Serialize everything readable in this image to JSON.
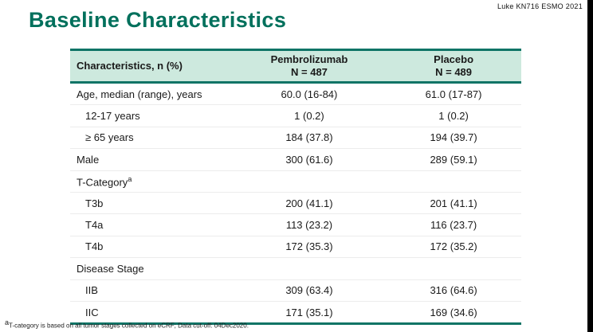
{
  "slide": {
    "attribution": "Luke KN716 ESMO 2021",
    "title": "Baseline Characteristics",
    "footnote_sup": "a",
    "footnote": "T-category is based on all tumor stages collected on eCRF; Data cut-off: 04Dec2020."
  },
  "colors": {
    "accent_teal": "#00705C",
    "table_border_teal": "#0E7466",
    "header_bg_mint": "#CDE9DE"
  },
  "table": {
    "headers": {
      "characteristics": "Characteristics, n (%)",
      "pembrolizumab_line1": "Pembrolizumab",
      "pembrolizumab_line2": "N = 487",
      "placebo_line1": "Placebo",
      "placebo_line2": "N = 489"
    },
    "rows": [
      {
        "label": "Age, median (range), years",
        "pembrolizumab": "60.0 (16-84)",
        "placebo": "61.0 (17-87)"
      },
      {
        "label": "12-17 years",
        "pembrolizumab": "1 (0.2)",
        "placebo": "1 (0.2)"
      },
      {
        "label": "≥ 65 years",
        "pembrolizumab": "184 (37.8)",
        "placebo": "194 (39.7)"
      },
      {
        "label": "Male",
        "pembrolizumab": "300 (61.6)",
        "placebo": "289 (59.1)"
      },
      {
        "label": "T-Category",
        "sup": "a",
        "pembrolizumab": "",
        "placebo": ""
      },
      {
        "label": "T3b",
        "pembrolizumab": "200 (41.1)",
        "placebo": "201 (41.1)"
      },
      {
        "label": "T4a",
        "pembrolizumab": "113 (23.2)",
        "placebo": "116 (23.7)"
      },
      {
        "label": "T4b",
        "pembrolizumab": "172 (35.3)",
        "placebo": "172 (35.2)"
      },
      {
        "label": "Disease Stage",
        "pembrolizumab": "",
        "placebo": ""
      },
      {
        "label": "IIB",
        "pembrolizumab": "309 (63.4)",
        "placebo": "316 (64.6)"
      },
      {
        "label": "IIC",
        "pembrolizumab": "171 (35.1)",
        "placebo": "169 (34.6)"
      }
    ]
  },
  "chart_data": {
    "type": "table",
    "title": "Baseline Characteristics",
    "columns": [
      "Characteristics, n (%)",
      "Pembrolizumab N = 487",
      "Placebo N = 489"
    ],
    "rows": [
      [
        "Age, median (range), years",
        "60.0 (16-84)",
        "61.0 (17-87)"
      ],
      [
        "12-17 years",
        "1 (0.2)",
        "1 (0.2)"
      ],
      [
        "≥ 65 years",
        "184 (37.8)",
        "194 (39.7)"
      ],
      [
        "Male",
        "300 (61.6)",
        "289 (59.1)"
      ],
      [
        "T-Category(a)",
        "",
        ""
      ],
      [
        "T3b",
        "200 (41.1)",
        "201 (41.1)"
      ],
      [
        "T4a",
        "113 (23.2)",
        "116 (23.7)"
      ],
      [
        "T4b",
        "172 (35.3)",
        "172 (35.2)"
      ],
      [
        "Disease Stage",
        "",
        ""
      ],
      [
        "IIB",
        "309 (63.4)",
        "316 (64.6)"
      ],
      [
        "IIC",
        "171 (35.1)",
        "169 (34.6)"
      ]
    ]
  }
}
